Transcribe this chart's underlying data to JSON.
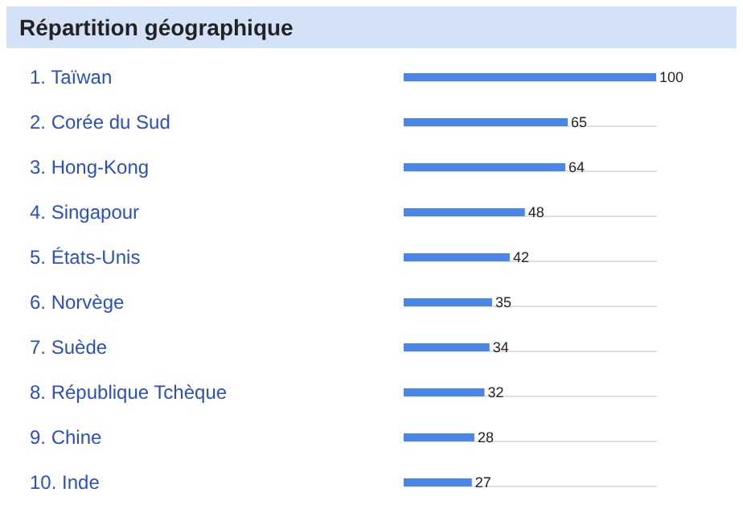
{
  "chart_data": {
    "type": "bar",
    "orientation": "horizontal",
    "title": "Répartition géographique",
    "categories": [
      "1.  Taïwan",
      "2.  Corée du Sud",
      "3.  Hong-Kong",
      "4.  Singapour",
      "5.  États-Unis",
      "6.  Norvège",
      "7.  Suède",
      "8.  République Tchèque",
      "9.  Chine",
      "10.  Inde"
    ],
    "values": [
      100,
      65,
      64,
      48,
      42,
      35,
      34,
      32,
      28,
      27
    ],
    "color": "#4a86e8",
    "xlim": [
      0,
      100
    ],
    "data_labels": true,
    "grid": "y"
  }
}
